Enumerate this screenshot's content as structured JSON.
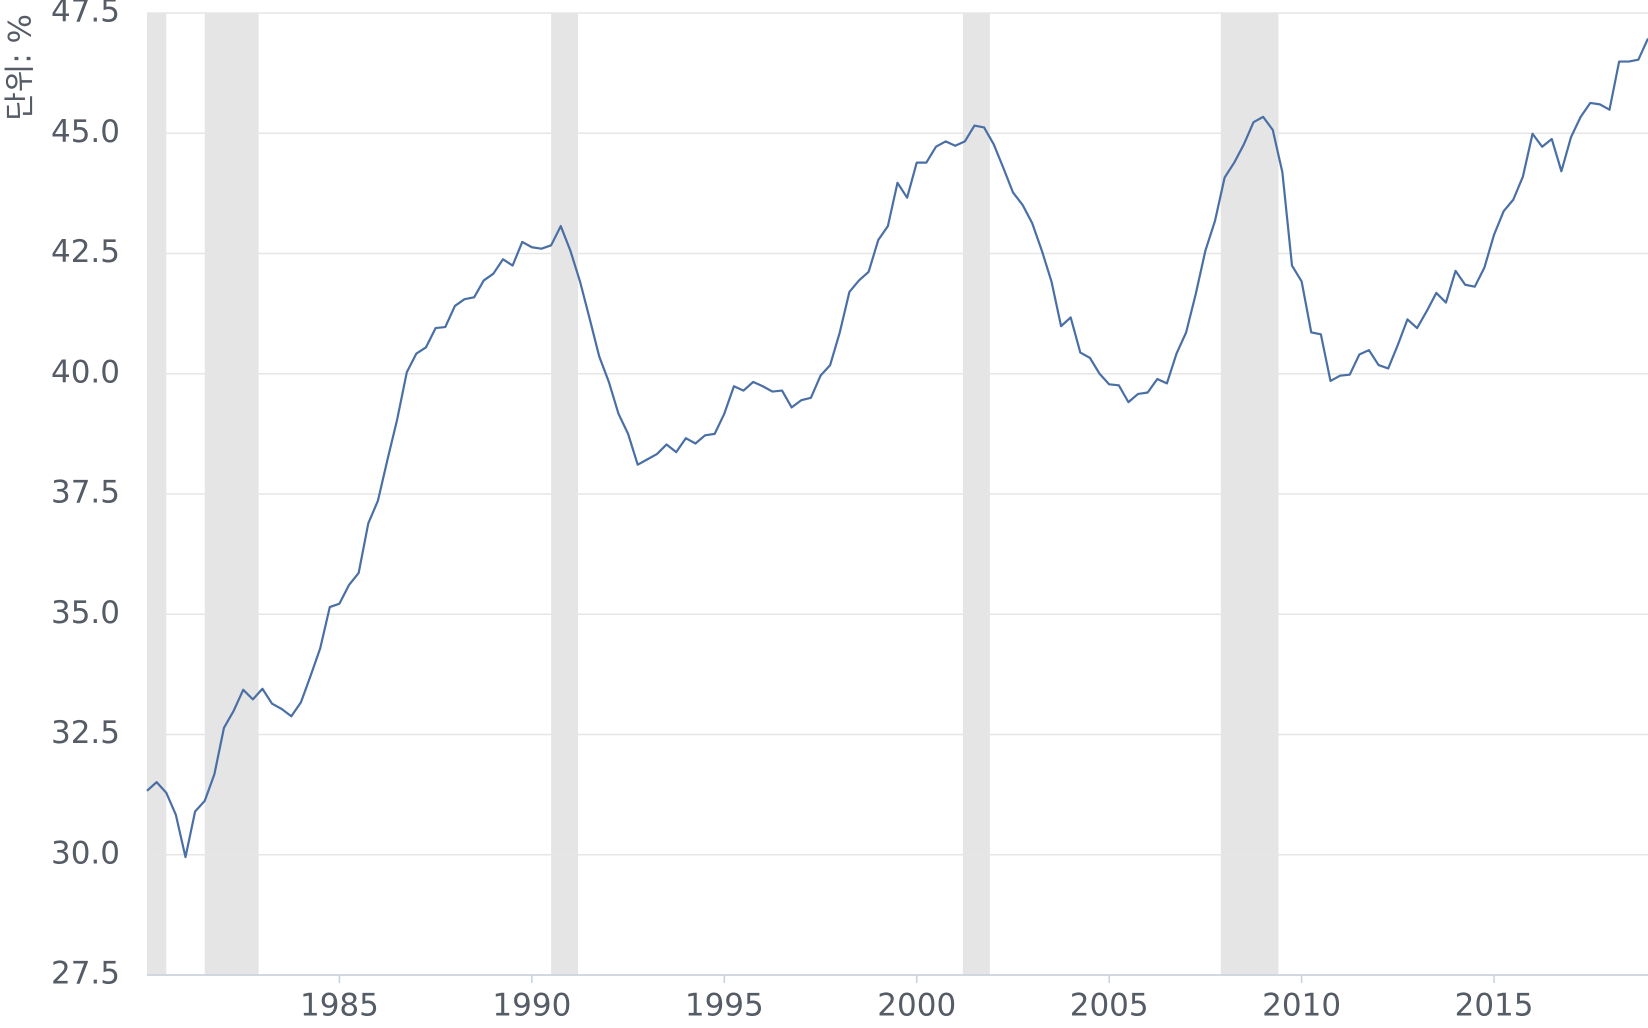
{
  "chart_data": {
    "type": "line",
    "y_label": "단위: %",
    "xlim": [
      1980,
      2019
    ],
    "ylim": [
      27.5,
      47.5
    ],
    "xticks": [
      1985,
      1990,
      1995,
      2000,
      2005,
      2010,
      2015
    ],
    "yticks": [
      27.5,
      {
        "value": 30,
        "label": "30.0"
      },
      32.5,
      {
        "value": 35,
        "label": "35.0"
      },
      37.5,
      {
        "value": 40,
        "label": "40.0"
      },
      42.5,
      {
        "value": 45,
        "label": "45.0"
      },
      47.5
    ],
    "grid": true,
    "color": "#4a6fa5",
    "recessions": [
      [
        1980,
        1980.5
      ],
      [
        1981.5,
        1982.9
      ],
      [
        1990.5,
        1991.2
      ],
      [
        2001.2,
        2001.9
      ],
      [
        2007.9,
        2009.4
      ]
    ],
    "recession_color": "#e5e5e5",
    "x": [
      1980,
      1980.25,
      1980.5,
      1980.75,
      1981,
      1981.25,
      1981.5,
      1981.75,
      1982,
      1982.25,
      1982.5,
      1982.75,
      1983,
      1983.25,
      1983.5,
      1983.75,
      1984,
      1984.25,
      1984.5,
      1984.75,
      1985,
      1985.25,
      1985.5,
      1985.75,
      1986,
      1986.25,
      1986.5,
      1986.75,
      1987,
      1987.25,
      1987.5,
      1987.75,
      1988,
      1988.25,
      1988.5,
      1988.75,
      1989,
      1989.25,
      1989.5,
      1989.75,
      1990,
      1990.25,
      1990.5,
      1990.75,
      1991,
      1991.25,
      1991.5,
      1991.75,
      1992,
      1992.25,
      1992.5,
      1992.75,
      1993,
      1993.25,
      1993.5,
      1993.75,
      1994,
      1994.25,
      1994.5,
      1994.75,
      1995,
      1995.25,
      1995.5,
      1995.75,
      1996,
      1996.25,
      1996.5,
      1996.75,
      1997,
      1997.25,
      1997.5,
      1997.75,
      1998,
      1998.25,
      1998.5,
      1998.75,
      1999,
      1999.25,
      1999.5,
      1999.75,
      2000,
      2000.25,
      2000.5,
      2000.75,
      2001,
      2001.25,
      2001.5,
      2001.75,
      2002,
      2002.25,
      2002.5,
      2002.75,
      2003,
      2003.25,
      2003.5,
      2003.75,
      2004,
      2004.25,
      2004.5,
      2004.75,
      2005,
      2005.25,
      2005.5,
      2005.75,
      2006,
      2006.25,
      2006.5,
      2006.75,
      2007,
      2007.25,
      2007.5,
      2007.75,
      2008,
      2008.25,
      2008.5,
      2008.75,
      2009,
      2009.25,
      2009.5,
      2009.75,
      2010,
      2010.25,
      2010.5,
      2010.75,
      2011,
      2011.25,
      2011.5,
      2011.75,
      2012,
      2012.25,
      2012.5,
      2012.75,
      2013,
      2013.25,
      2013.5,
      2013.75,
      2014,
      2014.25,
      2014.5,
      2014.75,
      2015,
      2015.25,
      2015.5,
      2015.75,
      2016,
      2016.25,
      2016.5,
      2016.75,
      2017,
      2017.25,
      2017.5,
      2017.75,
      2018,
      2018.25,
      2018.5,
      2018.75,
      2019
    ],
    "values": [
      31.33,
      31.51,
      31.29,
      30.83,
      29.95,
      30.9,
      31.12,
      31.67,
      32.64,
      32.99,
      33.43,
      33.23,
      33.45,
      33.14,
      33.03,
      32.88,
      33.17,
      33.72,
      34.29,
      35.15,
      35.22,
      35.61,
      35.86,
      36.89,
      37.36,
      38.22,
      39.05,
      40.03,
      40.42,
      40.55,
      40.95,
      40.97,
      41.41,
      41.55,
      41.59,
      41.94,
      42.08,
      42.38,
      42.25,
      42.74,
      42.63,
      42.6,
      42.67,
      43.07,
      42.56,
      41.92,
      41.15,
      40.36,
      39.83,
      39.17,
      38.75,
      38.11,
      38.22,
      38.33,
      38.53,
      38.37,
      38.66,
      38.55,
      38.72,
      38.75,
      39.17,
      39.74,
      39.65,
      39.83,
      39.74,
      39.63,
      39.65,
      39.3,
      39.45,
      39.5,
      39.96,
      40.18,
      40.86,
      41.7,
      41.94,
      42.12,
      42.78,
      43.07,
      43.97,
      43.66,
      44.39,
      44.39,
      44.72,
      44.83,
      44.74,
      44.83,
      45.16,
      45.12,
      44.77,
      44.28,
      43.77,
      43.51,
      43.13,
      42.56,
      41.92,
      40.99,
      41.17,
      40.44,
      40.33,
      40.0,
      39.78,
      39.76,
      39.41,
      39.58,
      39.61,
      39.89,
      39.8,
      40.42,
      40.86,
      41.66,
      42.56,
      43.18,
      44.08,
      44.39,
      44.77,
      45.23,
      45.34,
      45.07,
      44.19,
      42.25,
      41.92,
      40.86,
      40.82,
      39.85,
      39.96,
      39.98,
      40.4,
      40.49,
      40.18,
      40.11,
      40.6,
      41.13,
      40.95,
      41.3,
      41.68,
      41.48,
      42.14,
      41.85,
      41.81,
      42.21,
      42.89,
      43.38,
      43.62,
      44.1,
      44.99,
      44.72,
      44.88,
      44.21,
      44.92,
      45.34,
      45.63,
      45.6,
      45.49,
      46.49,
      46.49,
      46.53,
      46.97
    ]
  }
}
